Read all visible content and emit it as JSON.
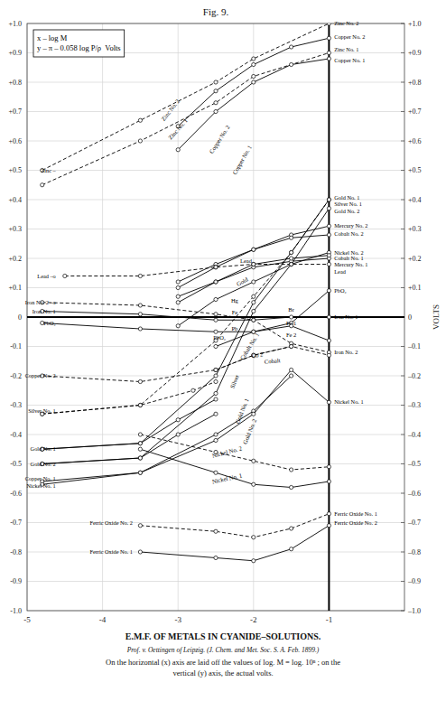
{
  "chart_data": {
    "type": "line",
    "title": "Fig. 9.",
    "subtitle": [
      "E.M.F. OF METALS IN CYANIDE–SOLUTIONS.",
      "Prof. v. Oettingen of Leipzig.  (J. Chem. and Met. Soc. S. A. Feb. 1899.)",
      "On the horizontal (x) axis are laid off the values of log. M = log. 10ⁿ ; on the",
      "vertical (y) axis, the actual volts."
    ],
    "y2_label": "VOLTS",
    "xlim": [
      -5,
      0
    ],
    "xticks": [
      -5,
      -4,
      -3,
      -2,
      -1
    ],
    "ylim": [
      -1.0,
      1.0
    ],
    "yticks": [
      {
        "value": -1.0,
        "label": "-1.0"
      },
      {
        "value": -0.9,
        "label": "-0.9"
      },
      {
        "value": -0.8,
        "label": "-0.8"
      },
      {
        "value": -0.7,
        "label": "-0.7"
      },
      {
        "value": -0.6,
        "label": "-0.6"
      },
      {
        "value": -0.5,
        "label": "-0.5"
      },
      {
        "value": -0.4,
        "label": "-0.4"
      },
      {
        "value": -0.3,
        "label": "-0.3"
      },
      {
        "value": -0.2,
        "label": "-0.2"
      },
      {
        "value": -0.1,
        "label": "-0.1"
      },
      0,
      {
        "value": 0.1,
        "label": "+0.1"
      },
      {
        "value": 0.2,
        "label": "+0.2"
      },
      {
        "value": 0.3,
        "label": "+0.3"
      },
      {
        "value": 0.4,
        "label": "+0.4"
      },
      {
        "value": 0.5,
        "label": "+0.5"
      },
      {
        "value": 0.6,
        "label": "+0.6"
      },
      {
        "value": 0.7,
        "label": "+0.7"
      },
      {
        "value": 0.8,
        "label": "+0.8"
      },
      {
        "value": 0.9,
        "label": "+0.9"
      },
      {
        "value": 1.0,
        "label": "+1.0"
      }
    ],
    "y2lim": [
      -1.0,
      1.0
    ],
    "y2ticks": [
      {
        "value": -1.0,
        "label": "–1.0"
      },
      {
        "value": -0.9,
        "label": "–0.9"
      },
      {
        "value": -0.8,
        "label": "–0.8"
      },
      {
        "value": -0.7,
        "label": "–0.7"
      },
      {
        "value": -0.6,
        "label": "–0.6"
      },
      {
        "value": -0.5,
        "label": "–0.5"
      },
      {
        "value": -0.4,
        "label": "–0.4"
      },
      {
        "value": -0.3,
        "label": "–0.3"
      },
      {
        "value": -0.2,
        "label": "–0.2"
      },
      {
        "value": -0.1,
        "label": "–0.1"
      },
      0,
      {
        "value": 0.1,
        "label": "+0.1"
      },
      {
        "value": 0.2,
        "label": "+0.2"
      },
      {
        "value": 0.3,
        "label": "+0.3"
      },
      {
        "value": 0.4,
        "label": "+0.4"
      },
      {
        "value": 0.5,
        "label": "+0.5"
      },
      {
        "value": 0.6,
        "label": "+0.6"
      },
      {
        "value": 0.7,
        "label": "+0.7"
      },
      {
        "value": 0.8,
        "label": "+0.8"
      },
      {
        "value": 0.9,
        "label": "+0.9"
      },
      {
        "value": 1.0,
        "label": "+1.0"
      }
    ],
    "grid": true,
    "color": "black",
    "marker": "circle",
    "hlines": [
      0
    ],
    "vlines": [
      -1.0
    ],
    "series": [
      {
        "x": [
          -4.8,
          -3.5,
          -2.5,
          -2.0,
          -1.0
        ],
        "values": [
          0.5,
          0.67,
          0.8,
          0.88,
          1.0
        ],
        "line_style": "dashed"
      },
      {
        "x": [
          -4.8,
          -3.5,
          -2.5,
          -2.0,
          -1.0
        ],
        "values": [
          0.45,
          0.6,
          0.73,
          0.82,
          0.9
        ],
        "line_style": "dashed"
      },
      {
        "x": [
          -3.0,
          -2.5,
          -2.0,
          -1.5,
          -1.0
        ],
        "values": [
          0.65,
          0.77,
          0.86,
          0.92,
          0.95
        ],
        "line_style": "solid"
      },
      {
        "x": [
          -3.0,
          -2.5,
          -2.0,
          -1.5,
          -1.0
        ],
        "values": [
          0.57,
          0.7,
          0.8,
          0.86,
          0.88
        ],
        "line_style": "solid"
      },
      {
        "x": [
          -4.8,
          -3.5,
          -2.5,
          -2.0,
          -1.5,
          -1.0
        ],
        "values": [
          -0.45,
          -0.43,
          -0.2,
          0.05,
          0.22,
          0.4
        ],
        "line_style": "solid"
      },
      {
        "x": [
          -4.8,
          -3.5,
          -2.5,
          -2.0,
          -1.5,
          -1.0
        ],
        "values": [
          -0.33,
          -0.3,
          -0.08,
          0.07,
          0.22,
          0.4
        ],
        "line_style": "dashed"
      },
      {
        "x": [
          -4.8,
          -3.5,
          -2.5,
          -2.0,
          -1.5,
          -1.0
        ],
        "values": [
          -0.5,
          -0.48,
          -0.26,
          0.02,
          0.18,
          0.37
        ],
        "line_style": "solid"
      },
      {
        "x": [
          -3.0,
          -2.5,
          -2.0,
          -1.5,
          -1.0
        ],
        "values": [
          0.12,
          0.18,
          0.23,
          0.28,
          0.31
        ],
        "line_style": "solid"
      },
      {
        "x": [
          -3.0,
          -2.5,
          -2.0,
          -1.5,
          -1.0
        ],
        "values": [
          0.07,
          0.12,
          0.17,
          0.19,
          0.2
        ],
        "line_style": "solid"
      },
      {
        "x": [
          -3.0,
          -2.5,
          -2.0,
          -1.5,
          -1.0
        ],
        "values": [
          0.1,
          0.17,
          0.23,
          0.27,
          0.28
        ],
        "line_style": "solid"
      },
      {
        "x": [
          -3.0,
          -2.5,
          -2.0,
          -1.5,
          -1.0
        ],
        "values": [
          -0.03,
          0.06,
          0.12,
          0.18,
          0.22
        ],
        "line_style": "solid"
      },
      {
        "x": [
          -3.0,
          -2.5,
          -2.0,
          -1.5,
          -1.0
        ],
        "values": [
          0.05,
          0.12,
          0.18,
          0.2,
          0.21
        ],
        "line_style": "solid"
      },
      {
        "x": [
          -4.5,
          -3.5,
          -2.5,
          -2.0,
          -1.5,
          -1.0
        ],
        "values": [
          0.14,
          0.14,
          0.17,
          0.18,
          0.18,
          0.18
        ],
        "line_style": "dashed"
      },
      {
        "x": [
          -4.8,
          -3.5,
          -2.5,
          -2.0,
          -1.5,
          -1.0
        ],
        "values": [
          0.05,
          0.04,
          0.01,
          -0.01,
          -0.09,
          -0.12
        ],
        "line_style": "dashed"
      },
      {
        "x": [
          -4.8,
          -3.5,
          -2.5,
          -2.0,
          -1.5,
          -1.0
        ],
        "values": [
          0.02,
          0.01,
          -0.01,
          -0.01,
          0.0,
          0.0
        ],
        "line_style": "solid"
      },
      {
        "x": [
          -4.8,
          -3.5,
          -2.5,
          -2.0,
          -1.5,
          -1.0
        ],
        "values": [
          -0.02,
          -0.04,
          -0.05,
          -0.05,
          -0.02,
          0.09
        ],
        "line_style": "solid"
      },
      {
        "x": [
          -2.5,
          -2.0,
          -1.5,
          -1.0
        ],
        "values": [
          -0.1,
          -0.05,
          -0.03,
          -0.08
        ],
        "line_style": "solid"
      },
      {
        "x": [
          -2.5,
          -2.0,
          -1.5,
          -1.0
        ],
        "values": [
          -0.18,
          -0.13,
          -0.1,
          -0.13
        ],
        "line_style": "dashed"
      },
      {
        "x": [
          -4.8,
          -3.5,
          -2.5,
          -2.0,
          -1.5
        ],
        "values": [
          -0.2,
          -0.22,
          -0.18,
          -0.13,
          -0.1
        ],
        "line_style": "dashed"
      },
      {
        "x": [
          -4.8,
          -3.5,
          -2.8,
          -2.5
        ],
        "values": [
          -0.33,
          -0.3,
          -0.25,
          -0.22
        ],
        "line_style": "dashed"
      },
      {
        "x": [
          -4.8,
          -3.5,
          -3.0,
          -2.5
        ],
        "values": [
          -0.45,
          -0.43,
          -0.35,
          -0.28
        ],
        "line_style": "solid"
      },
      {
        "x": [
          -4.8,
          -3.5,
          -3.0,
          -2.5
        ],
        "values": [
          -0.5,
          -0.48,
          -0.4,
          -0.33
        ],
        "line_style": "solid"
      },
      {
        "x": [
          -4.8,
          -3.5,
          -2.5,
          -2.0,
          -1.5
        ],
        "values": [
          -0.56,
          -0.53,
          -0.4,
          -0.32,
          -0.2
        ],
        "line_style": "solid"
      },
      {
        "x": [
          -4.8,
          -3.5,
          -2.5,
          -2.0,
          -1.5,
          -1.0
        ],
        "values": [
          -0.57,
          -0.53,
          -0.42,
          -0.33,
          -0.18,
          -0.29
        ],
        "line_style": "solid"
      },
      {
        "x": [
          -3.5,
          -2.5,
          -2.0,
          -1.5,
          -1.0
        ],
        "values": [
          -0.4,
          -0.46,
          -0.49,
          -0.52,
          -0.51
        ],
        "line_style": "dashed"
      },
      {
        "x": [
          -3.5,
          -2.5,
          -2.0,
          -1.5,
          -1.0
        ],
        "values": [
          -0.45,
          -0.53,
          -0.57,
          -0.58,
          -0.56
        ],
        "line_style": "solid"
      },
      {
        "x": [
          -3.5,
          -2.5,
          -2.0,
          -1.5,
          -1.0
        ],
        "values": [
          -0.8,
          -0.82,
          -0.83,
          -0.79,
          -0.71
        ],
        "line_style": "solid"
      },
      {
        "x": [
          -3.5,
          -2.5,
          -2.0,
          -1.5,
          -1.0
        ],
        "values": [
          -0.71,
          -0.73,
          -0.75,
          -0.72,
          -0.67
        ],
        "line_style": "dashed"
      }
    ],
    "annotations": [
      {
        "x": -0.93,
        "y": 1.0,
        "text": "Zinc No. 2"
      },
      {
        "x": -0.93,
        "y": 0.955,
        "text": "Copper No. 2"
      },
      {
        "x": -0.93,
        "y": 0.91,
        "text": "Zinc No. 1"
      },
      {
        "x": -0.93,
        "y": 0.875,
        "text": "Copper No. 1"
      },
      {
        "x": -0.93,
        "y": 0.405,
        "text": "Gold No. 1"
      },
      {
        "x": -0.93,
        "y": 0.385,
        "text": "Silver No. 1"
      },
      {
        "x": -0.93,
        "y": 0.36,
        "text": "Gold No. 2"
      },
      {
        "x": -0.93,
        "y": 0.31,
        "text": "Mercury No. 2"
      },
      {
        "x": -0.93,
        "y": 0.282,
        "text": "Cobalt No. 2"
      },
      {
        "x": -0.93,
        "y": 0.22,
        "text": "Nickel No. 2"
      },
      {
        "x": -0.93,
        "y": 0.2,
        "text": "Cobalt No. 1"
      },
      {
        "x": -0.93,
        "y": 0.178,
        "text": "Mercury No. 1"
      },
      {
        "x": -0.93,
        "y": 0.155,
        "text": "Lead"
      },
      {
        "x": -0.93,
        "y": 0.09,
        "text": "PbO₂"
      },
      {
        "x": -0.93,
        "y": 0.0,
        "text": "Iron No. 1"
      },
      {
        "x": -0.93,
        "y": -0.12,
        "text": "Iron No. 2"
      },
      {
        "x": -0.93,
        "y": -0.29,
        "text": "Nickel No. 1"
      },
      {
        "x": -0.93,
        "y": -0.67,
        "text": "Ferric Oxide No. 1"
      },
      {
        "x": -0.93,
        "y": -0.7,
        "text": "Ferric Oxide No. 2"
      },
      {
        "x": -4.62,
        "y": 0.5,
        "text": "Zinc –"
      },
      {
        "x": -4.62,
        "y": 0.14,
        "text": "Lead –o"
      },
      {
        "x": -4.62,
        "y": 0.05,
        "text": "Iron No. 2 –o"
      },
      {
        "x": -4.62,
        "y": 0.02,
        "text": "Iron No. 1"
      },
      {
        "x": -4.62,
        "y": -0.02,
        "text": "PbO₂"
      },
      {
        "x": -4.62,
        "y": -0.2,
        "text": "Copper No. 2"
      },
      {
        "x": -4.62,
        "y": -0.32,
        "text": "Silver No. 1"
      },
      {
        "x": -4.62,
        "y": -0.45,
        "text": "Gold No. 1"
      },
      {
        "x": -4.62,
        "y": -0.5,
        "text": "Gold No. 2"
      },
      {
        "x": -4.62,
        "y": -0.55,
        "text": "Copper No. 1"
      },
      {
        "x": -4.62,
        "y": -0.575,
        "text": "Nickel No. 1"
      },
      {
        "x": -3.6,
        "y": -0.7,
        "text": "Ferric Oxide No. 2"
      },
      {
        "x": -3.6,
        "y": -0.8,
        "text": "Ferric Oxide No. 1"
      },
      {
        "x": -3.1,
        "y": 0.705,
        "text": "Zinc No. 2"
      },
      {
        "x": -3.0,
        "y": 0.64,
        "text": "Zinc No. 1"
      },
      {
        "x": -2.45,
        "y": 0.605,
        "text": "Copper No. 2"
      },
      {
        "x": -2.15,
        "y": 0.535,
        "text": "Copper No. 1"
      },
      {
        "x": -2.15,
        "y": 0.12,
        "text": "Gold"
      },
      {
        "x": -2.25,
        "y": -0.22,
        "text": "Silver"
      },
      {
        "x": -2.15,
        "y": -0.32,
        "text": "Gold No. 1"
      },
      {
        "x": -2.05,
        "y": -0.39,
        "text": "Gold No. 2"
      },
      {
        "x": -2.05,
        "y": -0.1,
        "text": "Cobalt No. 1"
      },
      {
        "x": -2.35,
        "y": -0.46,
        "text": "Nickel No. 2"
      },
      {
        "x": -2.35,
        "y": -0.55,
        "text": "Nickel No. 1"
      },
      {
        "x": -1.75,
        "y": -0.15,
        "text": "Cobalt"
      },
      {
        "x": -1.95,
        "y": -0.13,
        "text": "Co 2"
      },
      {
        "x": -2.1,
        "y": 0.19,
        "text": "Lead"
      },
      {
        "x": -2.25,
        "y": 0.055,
        "text": "Hg"
      },
      {
        "x": -2.25,
        "y": 0.015,
        "text": "Fe"
      },
      {
        "x": -2.25,
        "y": -0.04,
        "text": "Pb"
      },
      {
        "x": -2.45,
        "y": -0.07,
        "text": "PbO₂"
      },
      {
        "x": -1.5,
        "y": 0.025,
        "text": "Br"
      },
      {
        "x": -1.5,
        "y": -0.02,
        "text": "Fe 1"
      },
      {
        "x": -1.5,
        "y": -0.06,
        "text": "Fe 2"
      },
      {
        "text": "x – log M"
      },
      {
        "text": "y – π – 0.058 log P/ρ  Volts"
      }
    ]
  }
}
